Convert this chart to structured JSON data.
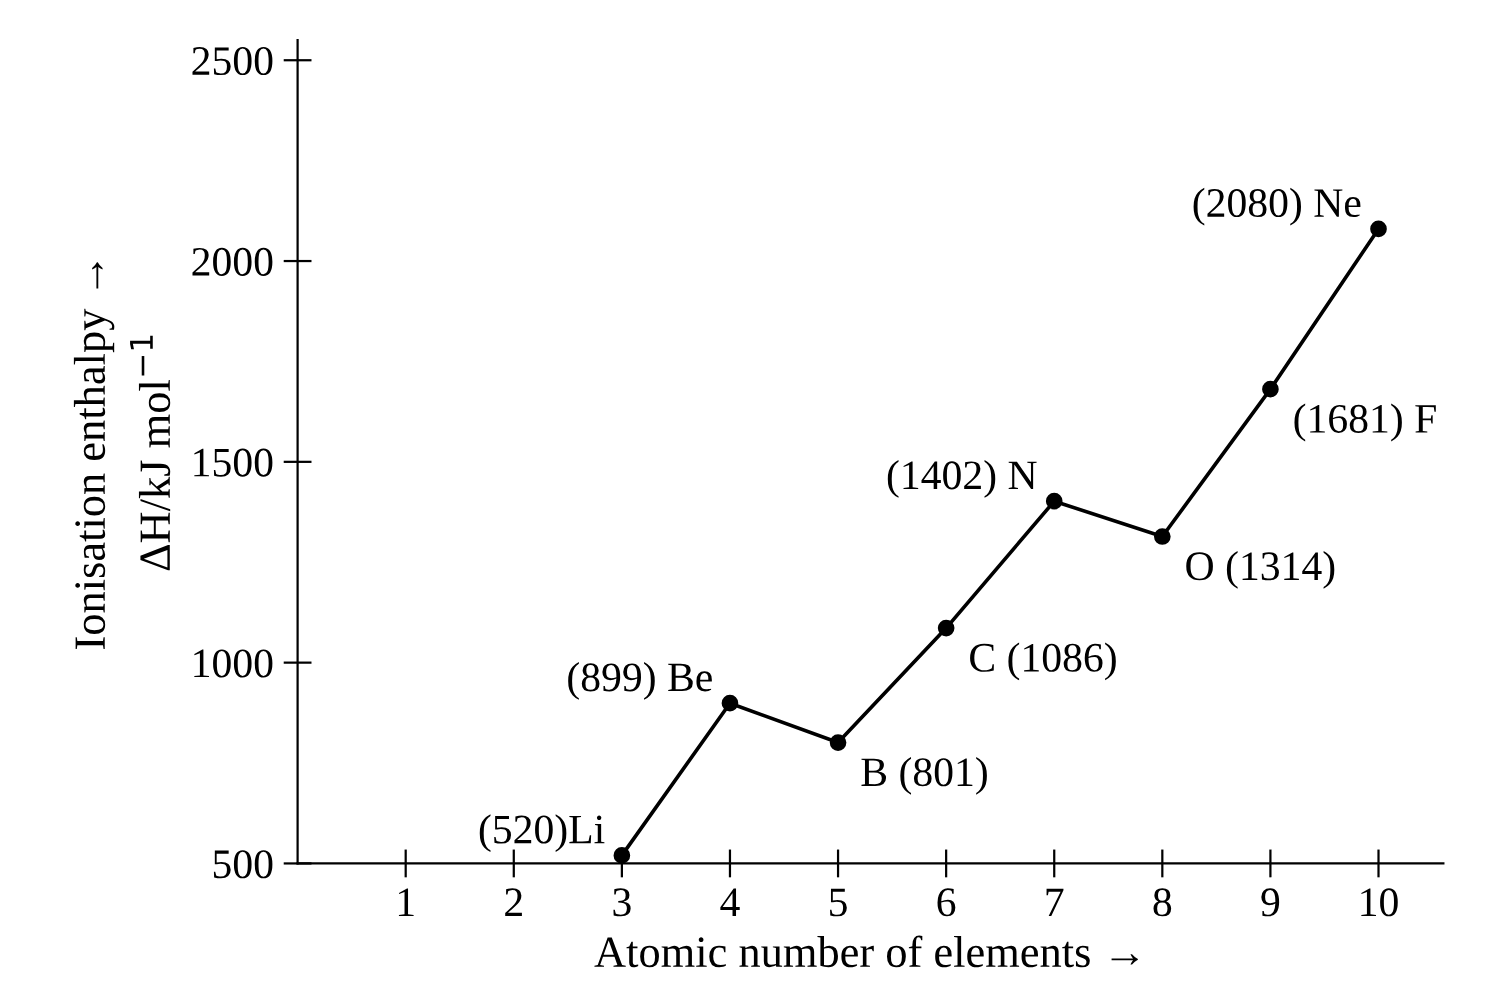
{
  "chart_data": {
    "type": "line",
    "xlabel": "Atomic number of elements →",
    "ylabel": "Ionisation enthalpy →\nΔH/kJ mol$^{−1}$",
    "x": [
      3,
      4,
      5,
      6,
      7,
      8,
      9,
      10
    ],
    "series": [
      {
        "color": "#000000",
        "values": [
          520,
          899,
          801,
          1086,
          1402,
          1314,
          1681,
          2080
        ],
        "value_labels": [
          "(520)Li",
          "(899) Be",
          "B (801)",
          "C (1086)",
          "(1402) N",
          "O (1314)",
          "(1681) F",
          "(2080) Ne"
        ]
      }
    ],
    "xlim": [
      0,
      10.6
    ],
    "xticks": [
      1,
      2,
      3,
      4,
      5,
      6,
      7,
      8,
      9,
      10
    ],
    "ylim": [
      500,
      2550
    ],
    "yticks": [
      500,
      1000,
      1500,
      2000,
      2500
    ],
    "marker": "circle",
    "line_style": "solid",
    "grid": false,
    "legend": false
  }
}
